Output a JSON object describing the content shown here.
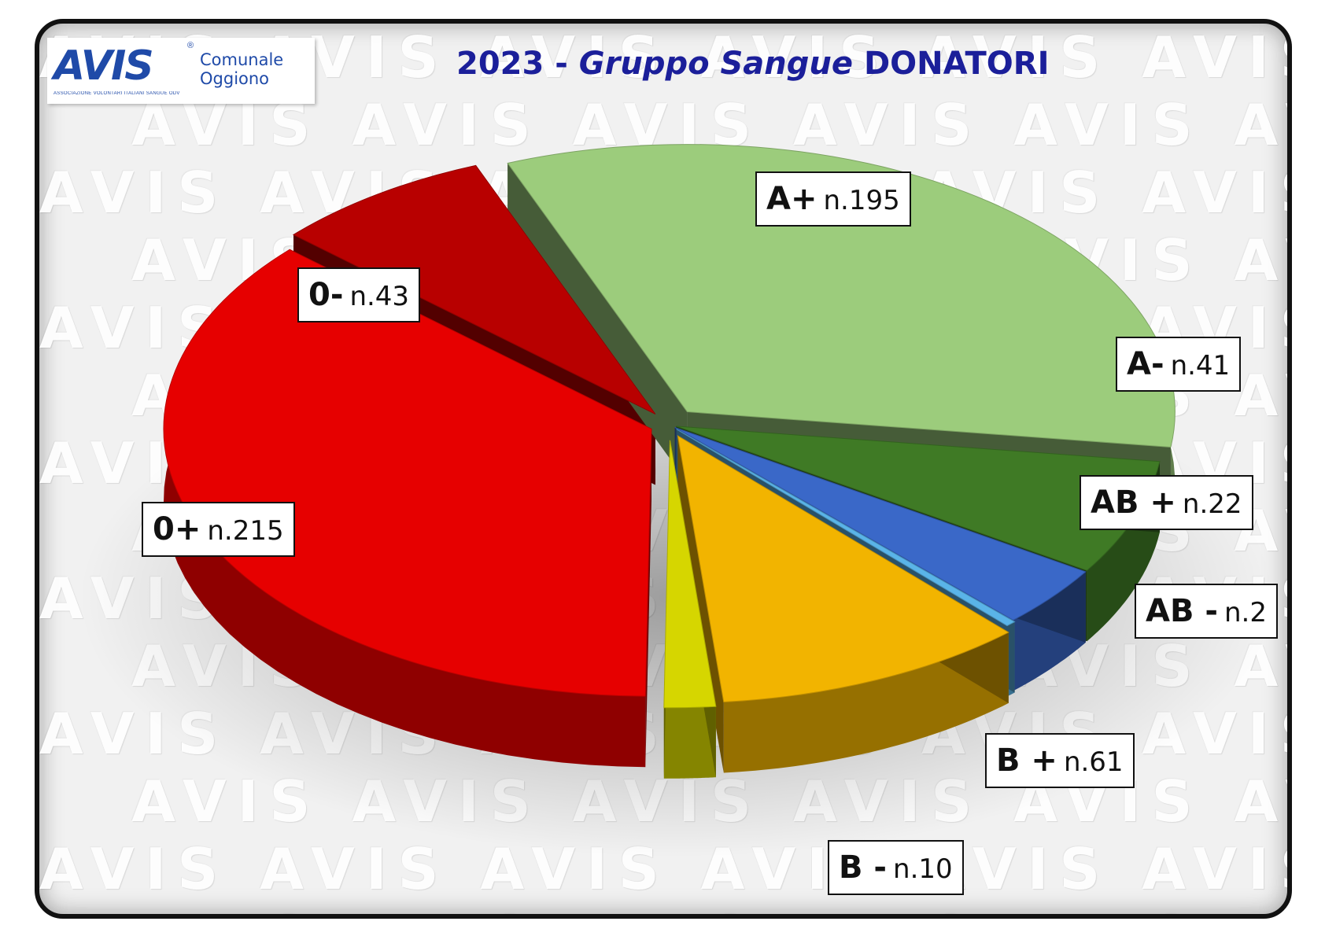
{
  "logo": {
    "mark": "AVIS",
    "registered": "®",
    "subtitle": "ASSOCIAZIONE VOLONTARI ITALIANI SANGUE ODV",
    "line1": "Comunale",
    "line2": "Oggiono"
  },
  "title": {
    "year": "2023",
    "sep": " - ",
    "italic": "Gruppo Sangue",
    "tail": " DONATORI"
  },
  "chart_data": {
    "type": "pie",
    "title": "2023 - Gruppo Sangue DONATORI",
    "slices": [
      {
        "group": "A+",
        "count_label": "n.195",
        "value": 195,
        "color": "#9ccc7c"
      },
      {
        "group": "A-",
        "count_label": "n.41",
        "value": 41,
        "color": "#3f7a25"
      },
      {
        "group": "AB +",
        "count_label": "n.22",
        "value": 22,
        "color": "#3a68c8"
      },
      {
        "group": "AB -",
        "count_label": "n.2",
        "value": 2,
        "color": "#5ab4e8"
      },
      {
        "group": "B +",
        "count_label": "n.61",
        "value": 61,
        "color": "#f2b400"
      },
      {
        "group": "B -",
        "count_label": "n.10",
        "value": 10,
        "color": "#d6d600"
      },
      {
        "group": "0+",
        "count_label": "n.215",
        "value": 215,
        "color": "#e60000"
      },
      {
        "group": "0-",
        "count_label": "n.43",
        "value": 43,
        "color": "#b80000"
      }
    ]
  }
}
